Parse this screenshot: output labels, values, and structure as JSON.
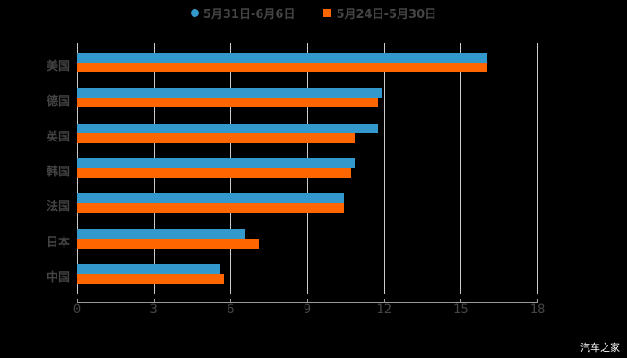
{
  "chart_data": {
    "type": "bar",
    "orientation": "horizontal",
    "title": "",
    "categories": [
      "美国",
      "德国",
      "英国",
      "韩国",
      "法国",
      "日本",
      "中国"
    ],
    "series": [
      {
        "name": "5月31日-6月6日",
        "color": "#3399cc",
        "values": [
          16.05,
          11.95,
          11.75,
          10.85,
          10.45,
          6.6,
          5.6
        ]
      },
      {
        "name": "5月24日-5月30日",
        "color": "#ff6600",
        "values": [
          16.05,
          11.75,
          10.85,
          10.7,
          10.45,
          7.1,
          5.75
        ]
      }
    ],
    "xticks": [
      "0",
      "3",
      "6",
      "9",
      "12",
      "15",
      "18"
    ],
    "xlim": [
      0,
      18
    ],
    "grid": true,
    "legend_position": "top"
  },
  "legend": {
    "s1": "5月31日-6月6日",
    "s2": "5月24日-5月30日"
  },
  "watermark": "汽车之家"
}
